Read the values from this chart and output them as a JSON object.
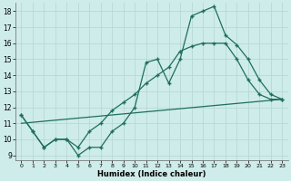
{
  "xlabel": "Humidex (Indice chaleur)",
  "background_color": "#ceecea",
  "grid_color": "#b8d8d6",
  "line_color": "#1e6e5e",
  "xlim": [
    -0.5,
    23.5
  ],
  "ylim": [
    8.7,
    18.5
  ],
  "xticks": [
    0,
    1,
    2,
    3,
    4,
    5,
    6,
    7,
    8,
    9,
    10,
    11,
    12,
    13,
    14,
    15,
    16,
    17,
    18,
    19,
    20,
    21,
    22,
    23
  ],
  "yticks": [
    9,
    10,
    11,
    12,
    13,
    14,
    15,
    16,
    17,
    18
  ],
  "line1_x": [
    0,
    1,
    2,
    3,
    4,
    5,
    6,
    7,
    8,
    9,
    10,
    11,
    12,
    13,
    14,
    15,
    16,
    17,
    18,
    19,
    20,
    21,
    22,
    23
  ],
  "line1_y": [
    11.5,
    10.5,
    9.5,
    10.0,
    10.0,
    9.0,
    9.5,
    9.5,
    10.5,
    11.0,
    12.0,
    14.8,
    15.0,
    13.5,
    15.0,
    17.7,
    18.0,
    18.3,
    16.5,
    15.9,
    15.0,
    13.7,
    12.8,
    12.5
  ],
  "line2_x": [
    0,
    1,
    2,
    3,
    4,
    5,
    6,
    7,
    8,
    9,
    10,
    11,
    12,
    13,
    14,
    15,
    16,
    17,
    18,
    19,
    20,
    21,
    22,
    23
  ],
  "line2_y": [
    11.5,
    10.5,
    9.5,
    10.0,
    10.0,
    9.5,
    10.5,
    11.0,
    11.8,
    12.3,
    12.8,
    13.5,
    14.0,
    14.5,
    15.5,
    15.8,
    16.0,
    16.0,
    16.0,
    15.0,
    13.7,
    12.8,
    12.5,
    12.5
  ],
  "line3_x": [
    0,
    23
  ],
  "line3_y": [
    11.0,
    12.5
  ]
}
